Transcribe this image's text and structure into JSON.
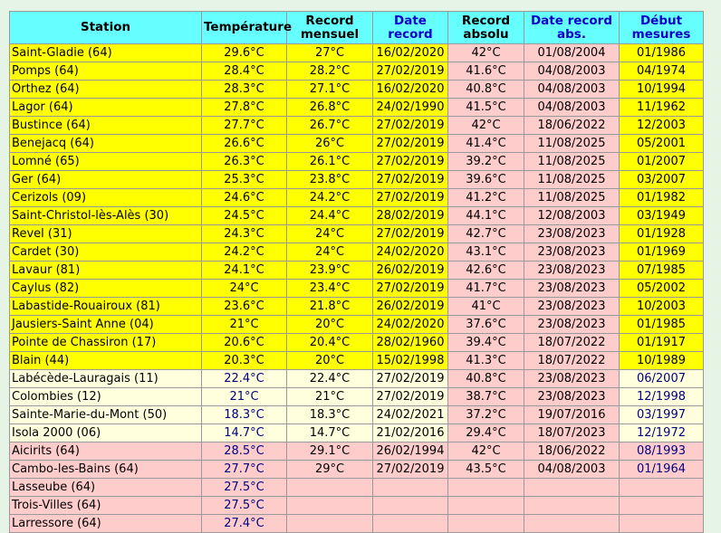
{
  "header": [
    "Station",
    "Température",
    "Record mensuel",
    "Date record",
    "Record absolu",
    "Date record abs.",
    "Début mesures"
  ],
  "header_colors": [
    "#000000",
    "#000000",
    "#000000",
    "#0000cc",
    "#000000",
    "#0000cc",
    "#0000cc"
  ],
  "groups": [
    {
      "fill": "#ffff00",
      "alt_fill": "#ffcccc",
      "text_color": "#000000",
      "accent": "#000000",
      "rows": [
        [
          "Saint-Gladie (64)",
          "29.6°C",
          "27°C",
          "16/02/2020",
          "42°C",
          "01/08/2004",
          "01/1986"
        ],
        [
          "Pomps (64)",
          "28.4°C",
          "28.2°C",
          "27/02/2019",
          "41.6°C",
          "04/08/2003",
          "04/1974"
        ],
        [
          "Orthez (64)",
          "28.3°C",
          "27.1°C",
          "16/02/2020",
          "40.8°C",
          "04/08/2003",
          "10/1994"
        ],
        [
          "Lagor (64)",
          "27.8°C",
          "26.8°C",
          "24/02/1990",
          "41.5°C",
          "04/08/2003",
          "11/1962"
        ],
        [
          "Bustince (64)",
          "27.7°C",
          "26.7°C",
          "27/02/2019",
          "42°C",
          "18/06/2022",
          "12/2003"
        ],
        [
          "Benejacq (64)",
          "26.6°C",
          "26°C",
          "27/02/2019",
          "41.4°C",
          "11/08/2025",
          "05/2001"
        ],
        [
          "Lomné (65)",
          "26.3°C",
          "26.1°C",
          "27/02/2019",
          "39.2°C",
          "11/08/2025",
          "01/2007"
        ],
        [
          "Ger (64)",
          "25.3°C",
          "23.8°C",
          "27/02/2019",
          "39.6°C",
          "11/08/2025",
          "03/2007"
        ],
        [
          "Cerizols (09)",
          "24.6°C",
          "24.2°C",
          "27/02/2019",
          "41.2°C",
          "11/08/2025",
          "01/1982"
        ],
        [
          "Saint-Christol-lès-Alès (30)",
          "24.5°C",
          "24.4°C",
          "28/02/2019",
          "44.1°C",
          "12/08/2003",
          "03/1949"
        ],
        [
          "Revel (31)",
          "24.3°C",
          "24°C",
          "27/02/2019",
          "42.7°C",
          "23/08/2023",
          "01/1928"
        ],
        [
          "Cardet (30)",
          "24.2°C",
          "24°C",
          "24/02/2020",
          "43.1°C",
          "23/08/2023",
          "01/1969"
        ],
        [
          "Lavaur (81)",
          "24.1°C",
          "23.9°C",
          "26/02/2019",
          "42.6°C",
          "23/08/2023",
          "07/1985"
        ],
        [
          "Caylus (82)",
          "24°C",
          "23.4°C",
          "27/02/2019",
          "41.7°C",
          "23/08/2023",
          "05/2002"
        ],
        [
          "Labastide-Rouairoux (81)",
          "23.6°C",
          "21.8°C",
          "26/02/2019",
          "41°C",
          "23/08/2023",
          "10/2003"
        ],
        [
          "Jausiers-Saint Anne (04)",
          "21°C",
          "20°C",
          "24/02/2020",
          "37.6°C",
          "23/08/2023",
          "01/1985"
        ],
        [
          "Pointe de Chassiron (17)",
          "20.6°C",
          "20.4°C",
          "28/02/1960",
          "39.4°C",
          "18/07/2022",
          "01/1917"
        ],
        [
          "Blain (44)",
          "20.3°C",
          "20°C",
          "15/02/1998",
          "41.3°C",
          "18/07/2022",
          "10/1989"
        ]
      ]
    },
    {
      "fill": "#ffffdd",
      "alt_fill": "#ffcccc",
      "text_color": "#000000",
      "accent": "#000080",
      "rows": [
        [
          "Labécède-Lauragais (11)",
          "22.4°C",
          "22.4°C",
          "27/02/2019",
          "40.8°C",
          "23/08/2023",
          "06/2007"
        ],
        [
          "Colombies (12)",
          "21°C",
          "21°C",
          "27/02/2019",
          "38.7°C",
          "23/08/2023",
          "12/1998"
        ],
        [
          "Sainte-Marie-du-Mont (50)",
          "18.3°C",
          "18.3°C",
          "24/02/2021",
          "37.2°C",
          "19/07/2016",
          "03/1997"
        ],
        [
          "Isola 2000 (06)",
          "14.7°C",
          "14.7°C",
          "21/02/2016",
          "29.4°C",
          "18/07/2023",
          "12/1972"
        ]
      ]
    },
    {
      "fill": "#ffcccc",
      "alt_fill": "#ffcccc",
      "text_color": "#000000",
      "accent": "#000080",
      "rows": [
        [
          "Aicirits (64)",
          "28.5°C",
          "29.1°C",
          "26/02/1994",
          "42°C",
          "18/06/2022",
          "08/1993"
        ],
        [
          "Cambo-les-Bains (64)",
          "27.7°C",
          "29°C",
          "27/02/2019",
          "43.5°C",
          "04/08/2003",
          "01/1964"
        ],
        [
          "Lasseube (64)",
          "27.5°C"
        ],
        [
          "Trois-Villes (64)",
          "27.5°C"
        ],
        [
          "Larressore (64)",
          "27.4°C"
        ]
      ]
    }
  ]
}
